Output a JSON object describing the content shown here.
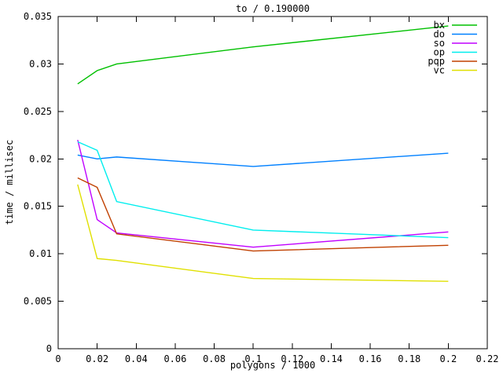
{
  "chart_data": {
    "type": "line",
    "title": "to / 0.190000",
    "xlabel": "polygons / 1000",
    "ylabel": "time / millisec",
    "xlim": [
      0,
      0.22
    ],
    "ylim": [
      0,
      0.035
    ],
    "grid": false,
    "legend_position": "top-right-inside",
    "background_color": "#ffffff",
    "axis_color": "#000000",
    "xticks": [
      {
        "v": 0,
        "label": "0"
      },
      {
        "v": 0.02,
        "label": "0.02"
      },
      {
        "v": 0.04,
        "label": "0.04"
      },
      {
        "v": 0.06,
        "label": "0.06"
      },
      {
        "v": 0.08,
        "label": "0.08"
      },
      {
        "v": 0.1,
        "label": "0.1"
      },
      {
        "v": 0.12,
        "label": "0.12"
      },
      {
        "v": 0.14,
        "label": "0.14"
      },
      {
        "v": 0.16,
        "label": "0.16"
      },
      {
        "v": 0.18,
        "label": "0.18"
      },
      {
        "v": 0.2,
        "label": "0.2"
      },
      {
        "v": 0.22,
        "label": "0.22"
      }
    ],
    "yticks": [
      {
        "v": 0,
        "label": "0"
      },
      {
        "v": 0.005,
        "label": "0.005"
      },
      {
        "v": 0.01,
        "label": "0.01"
      },
      {
        "v": 0.015,
        "label": "0.015"
      },
      {
        "v": 0.02,
        "label": "0.02"
      },
      {
        "v": 0.025,
        "label": "0.025"
      },
      {
        "v": 0.03,
        "label": "0.03"
      },
      {
        "v": 0.035,
        "label": "0.035"
      }
    ],
    "x": [
      0.01,
      0.02,
      0.03,
      0.1,
      0.2
    ],
    "series": [
      {
        "name": "bx",
        "color": "#00c000",
        "values": [
          0.0279,
          0.0293,
          0.03,
          0.0318,
          0.034
        ]
      },
      {
        "name": "do",
        "color": "#0080ff",
        "values": [
          0.0204,
          0.02,
          0.0202,
          0.0192,
          0.0206
        ]
      },
      {
        "name": "so",
        "color": "#c000ff",
        "values": [
          0.022,
          0.0136,
          0.0122,
          0.0107,
          0.0123
        ]
      },
      {
        "name": "op",
        "color": "#00eeee",
        "values": [
          0.0218,
          0.0209,
          0.0155,
          0.0125,
          0.0117
        ]
      },
      {
        "name": "pqp",
        "color": "#c04000",
        "values": [
          0.018,
          0.017,
          0.0121,
          0.0103,
          0.0109
        ]
      },
      {
        "name": "vc",
        "color": "#e0e000",
        "values": [
          0.0173,
          0.0095,
          0.0093,
          0.0074,
          0.0071
        ]
      }
    ]
  }
}
